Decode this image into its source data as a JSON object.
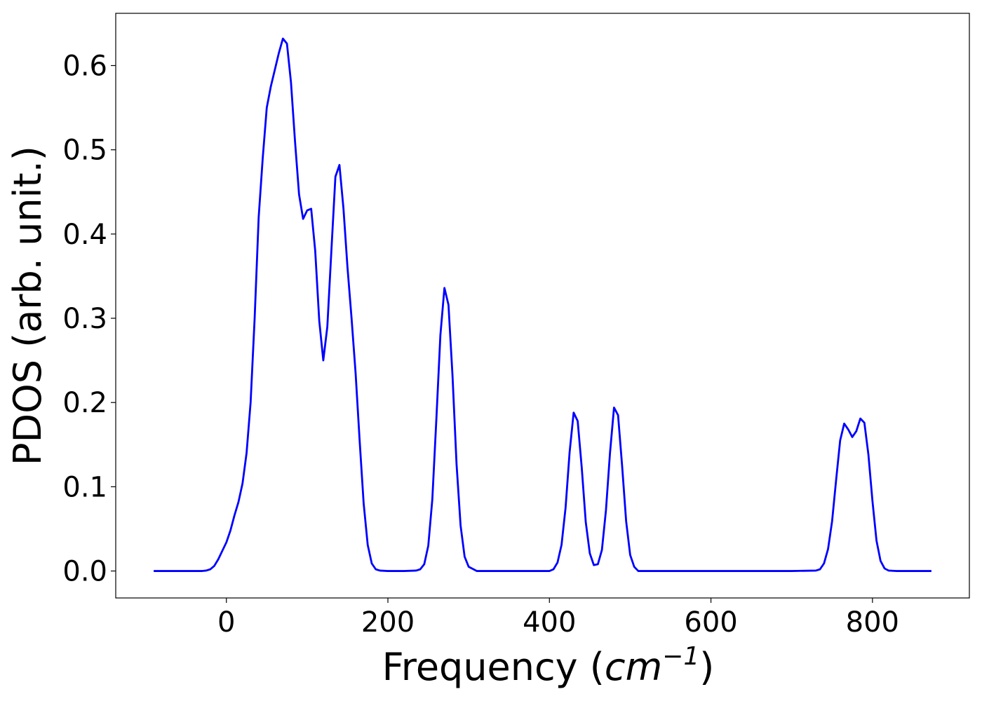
{
  "chart_data": {
    "type": "line",
    "title": "",
    "xlabel": "Frequency (",
    "xlabel_math_base": "cm",
    "xlabel_math_exp": "−1",
    "xlabel_close": ")",
    "ylabel": "PDOS (arb. unit.)",
    "xlim": [
      -137,
      920
    ],
    "ylim": [
      -0.032,
      0.662
    ],
    "xticks": [
      0,
      200,
      400,
      600,
      800
    ],
    "xtick_labels": [
      "0",
      "200",
      "400",
      "600",
      "800"
    ],
    "yticks": [
      0.0,
      0.1,
      0.2,
      0.3,
      0.4,
      0.5,
      0.6
    ],
    "ytick_labels": [
      "0.0",
      "0.1",
      "0.2",
      "0.3",
      "0.4",
      "0.5",
      "0.6"
    ],
    "grid": false,
    "series": [
      {
        "color": "#0000ff",
        "x": [
          -90,
          -60,
          -40,
          -30,
          -25,
          -20,
          -15,
          -10,
          -5,
          0,
          5,
          10,
          15,
          20,
          25,
          30,
          35,
          40,
          45,
          50,
          55,
          60,
          65,
          70,
          75,
          80,
          85,
          90,
          95,
          100,
          105,
          110,
          115,
          120,
          125,
          130,
          135,
          140,
          145,
          150,
          155,
          160,
          165,
          170,
          175,
          180,
          185,
          190,
          200,
          220,
          235,
          240,
          245,
          250,
          255,
          260,
          265,
          270,
          275,
          280,
          285,
          290,
          295,
          300,
          310,
          350,
          400,
          405,
          410,
          415,
          420,
          425,
          430,
          435,
          440,
          445,
          450,
          455,
          460,
          465,
          470,
          475,
          480,
          485,
          490,
          495,
          500,
          505,
          510,
          600,
          700,
          730,
          735,
          740,
          745,
          750,
          755,
          760,
          765,
          770,
          775,
          780,
          785,
          790,
          795,
          800,
          805,
          810,
          815,
          820,
          830,
          873
        ],
        "y": [
          0.0,
          0.0,
          0.0,
          0.0,
          0.0005,
          0.002,
          0.006,
          0.014,
          0.024,
          0.034,
          0.048,
          0.066,
          0.082,
          0.104,
          0.14,
          0.2,
          0.3,
          0.42,
          0.49,
          0.55,
          0.575,
          0.595,
          0.615,
          0.632,
          0.626,
          0.58,
          0.51,
          0.447,
          0.418,
          0.428,
          0.43,
          0.38,
          0.297,
          0.25,
          0.29,
          0.38,
          0.468,
          0.482,
          0.43,
          0.36,
          0.3,
          0.235,
          0.155,
          0.08,
          0.031,
          0.009,
          0.002,
          0.0005,
          0.0,
          0.0,
          0.0005,
          0.002,
          0.008,
          0.03,
          0.085,
          0.18,
          0.28,
          0.336,
          0.316,
          0.232,
          0.127,
          0.054,
          0.017,
          0.005,
          0.0,
          0.0,
          0.0,
          0.002,
          0.01,
          0.031,
          0.075,
          0.141,
          0.188,
          0.178,
          0.123,
          0.058,
          0.021,
          0.007,
          0.008,
          0.025,
          0.072,
          0.14,
          0.194,
          0.185,
          0.125,
          0.059,
          0.019,
          0.005,
          0.0,
          0.0,
          0.0,
          0.0005,
          0.002,
          0.009,
          0.026,
          0.059,
          0.108,
          0.155,
          0.175,
          0.168,
          0.159,
          0.166,
          0.181,
          0.176,
          0.138,
          0.083,
          0.036,
          0.012,
          0.003,
          0.0005,
          0.0,
          0.0
        ]
      }
    ]
  }
}
